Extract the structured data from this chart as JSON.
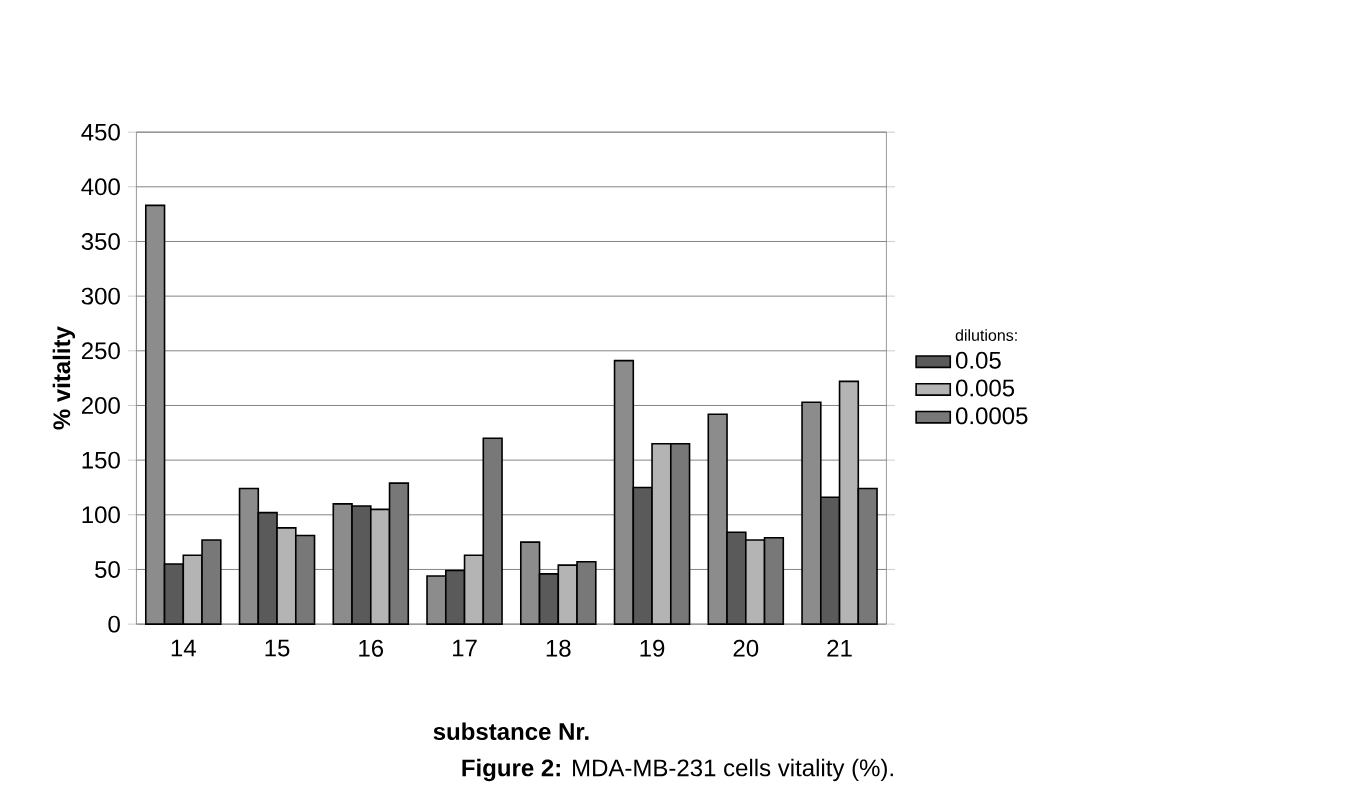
{
  "chart_data": {
    "type": "bar",
    "xlabel": "substance Nr.",
    "ylabel": "% vitality",
    "legend_title": "dilutions:",
    "categories": [
      "14",
      "15",
      "16",
      "17",
      "18",
      "19",
      "20",
      "21"
    ],
    "series": [
      {
        "color": "#8c8c8c",
        "values": [
          383,
          124,
          110,
          44,
          75,
          241,
          192,
          203
        ]
      },
      {
        "name": "0.05",
        "color": "#5a5a5a",
        "values": [
          55,
          102,
          108,
          49,
          46,
          125,
          84,
          116
        ]
      },
      {
        "name": "0.005",
        "color": "#b4b4b4",
        "values": [
          63,
          88,
          105,
          63,
          54,
          165,
          77,
          222
        ]
      },
      {
        "name": "0.0005",
        "color": "#787878",
        "values": [
          77,
          81,
          129,
          170,
          57,
          165,
          79,
          124
        ]
      }
    ],
    "ylim": [
      0,
      450
    ],
    "yticks": [
      0,
      50,
      100,
      150,
      200,
      250,
      300,
      350,
      400,
      450
    ],
    "grid": "y",
    "legend": "right",
    "annotations": [
      "**Figure 2:** MDA-MB-231 cells vitality (%)."
    ]
  }
}
